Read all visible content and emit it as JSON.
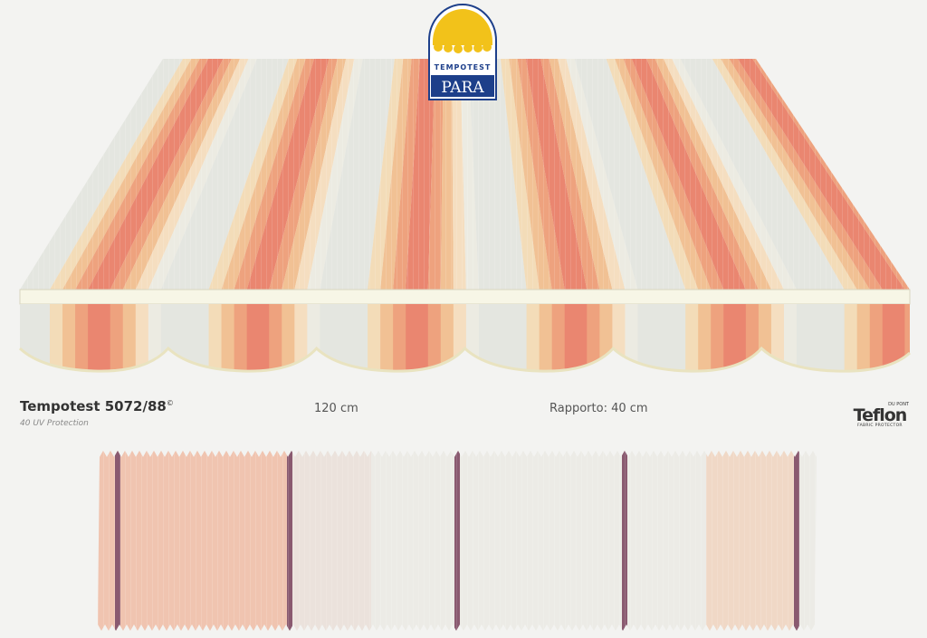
{
  "logo": {
    "top": "TEMPOTEST",
    "brand": "PARA"
  },
  "product": {
    "name": "Tempotest 5072/88",
    "mark": "©",
    "subtitle": "40 UV Protection",
    "width": "120 cm",
    "repeat": "Rapporto: 40 cm"
  },
  "protector": {
    "maker": "DU PONT",
    "brand": "Teflon",
    "tagline": "FABRIC PROTECTOR"
  }
}
